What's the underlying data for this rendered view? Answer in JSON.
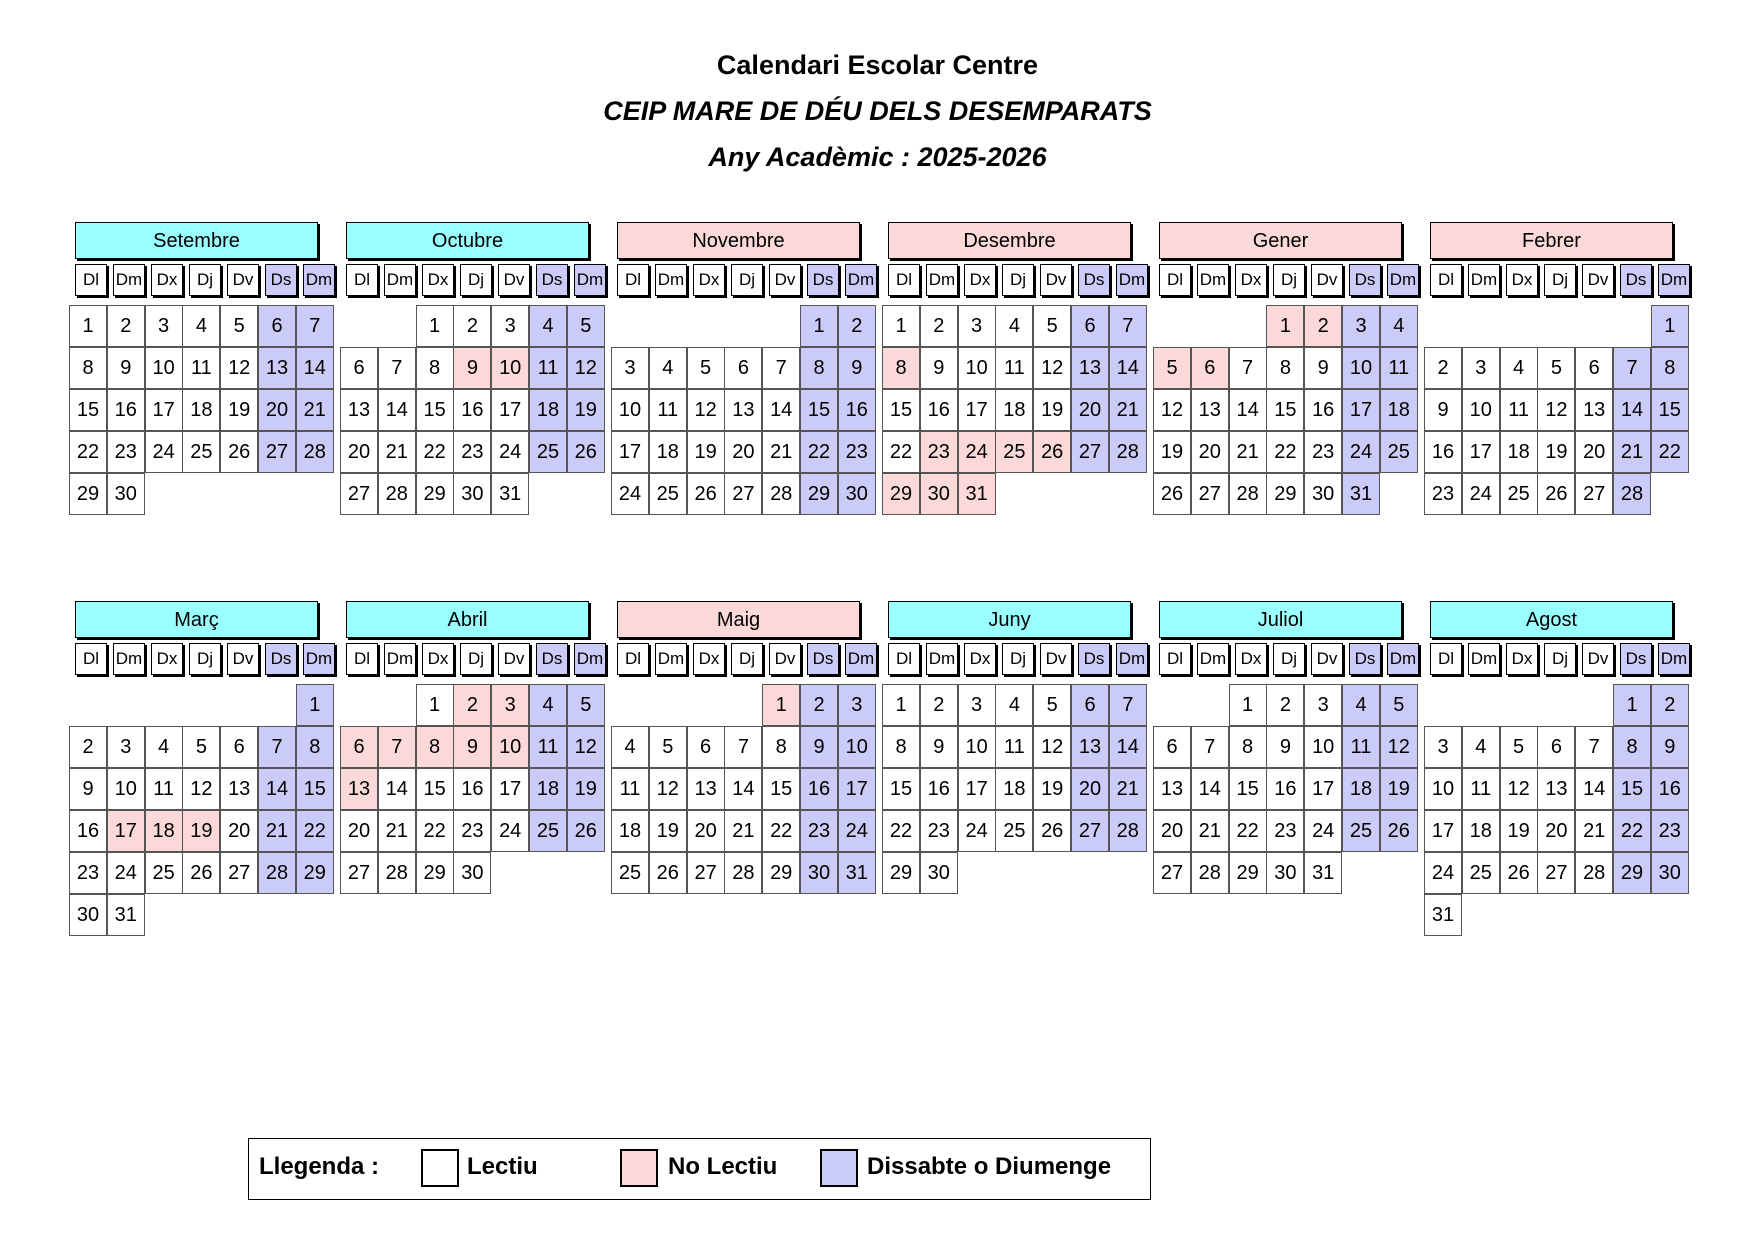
{
  "header": {
    "line1": "Calendari Escolar Centre",
    "line2": "CEIP MARE DE DÉU DELS DESEMPARATS",
    "line3": "Any Acadèmic : 2025-2026"
  },
  "weekdays": [
    "Dl",
    "Dm",
    "Dx",
    "Dj",
    "Dv",
    "Ds",
    "Dm"
  ],
  "colors": {
    "lectiu": "#ffffff",
    "no_lectiu": "#fbd9d9",
    "weekend": "#cbcbf7",
    "month_normal": "#99ffff",
    "month_holiday": "#fbd9d9"
  },
  "months": [
    {
      "name": "Setembre",
      "header_color": "#99ffff",
      "first_weekday": 0,
      "days": 30,
      "no_lectiu": []
    },
    {
      "name": "Octubre",
      "header_color": "#99ffff",
      "first_weekday": 2,
      "days": 31,
      "no_lectiu": [
        9,
        10
      ]
    },
    {
      "name": "Novembre",
      "header_color": "#fbd9d9",
      "first_weekday": 5,
      "days": 30,
      "no_lectiu": []
    },
    {
      "name": "Desembre",
      "header_color": "#fbd9d9",
      "first_weekday": 0,
      "days": 31,
      "no_lectiu": [
        8,
        23,
        24,
        25,
        26,
        29,
        30,
        31
      ]
    },
    {
      "name": "Gener",
      "header_color": "#fbd9d9",
      "first_weekday": 3,
      "days": 31,
      "no_lectiu": [
        1,
        2,
        5,
        6
      ]
    },
    {
      "name": "Febrer",
      "header_color": "#fbd9d9",
      "first_weekday": 6,
      "days": 28,
      "no_lectiu": []
    },
    {
      "name": "Març",
      "header_color": "#99ffff",
      "first_weekday": 6,
      "days": 31,
      "no_lectiu": [
        17,
        18,
        19
      ]
    },
    {
      "name": "Abril",
      "header_color": "#99ffff",
      "first_weekday": 2,
      "days": 30,
      "no_lectiu": [
        2,
        3,
        6,
        7,
        8,
        9,
        10,
        13
      ]
    },
    {
      "name": "Maig",
      "header_color": "#fbd9d9",
      "first_weekday": 4,
      "days": 31,
      "no_lectiu": [
        1
      ]
    },
    {
      "name": "Juny",
      "header_color": "#99ffff",
      "first_weekday": 0,
      "days": 30,
      "no_lectiu": []
    },
    {
      "name": "Juliol",
      "header_color": "#99ffff",
      "first_weekday": 2,
      "days": 31,
      "no_lectiu": []
    },
    {
      "name": "Agost",
      "header_color": "#99ffff",
      "first_weekday": 5,
      "days": 31,
      "no_lectiu": []
    }
  ],
  "legend": {
    "title": "Llegenda :",
    "lectiu": "Lectiu",
    "no_lectiu": "No Lectiu",
    "weekend": "Dissabte o Diumenge"
  }
}
